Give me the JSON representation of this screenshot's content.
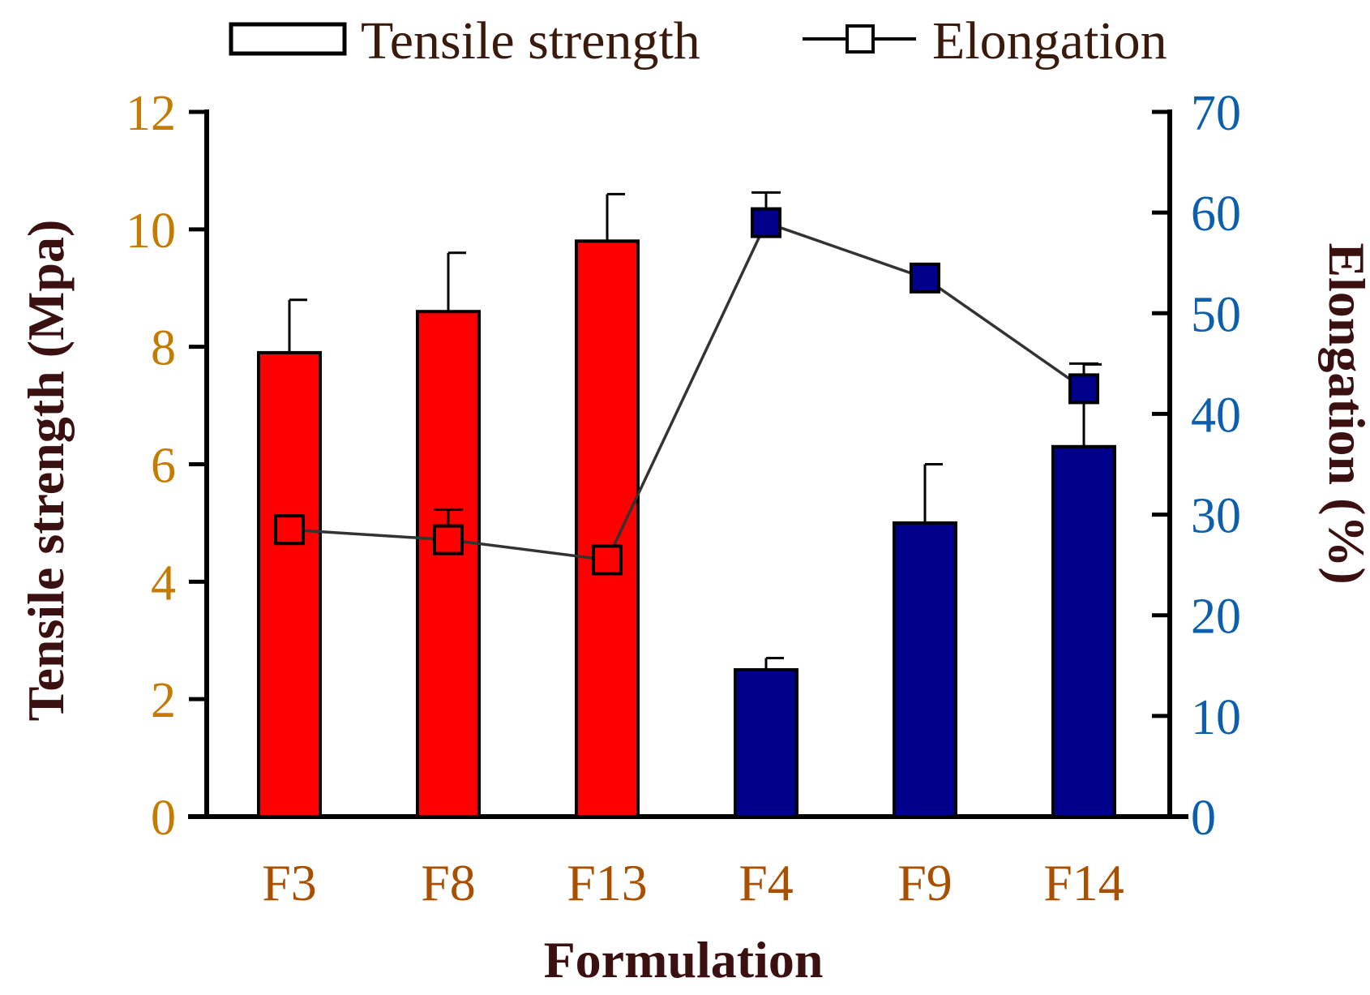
{
  "chart_data": {
    "type": "bar+line",
    "categories": [
      "F3",
      "F8",
      "F13",
      "F4",
      "F9",
      "F14"
    ],
    "xlabel": "Formulation",
    "legend": {
      "position": "top",
      "entries": [
        "Tensile strength",
        "Elongation"
      ]
    },
    "left_axis": {
      "label": "Tensile strength (Mpa)",
      "ylim": [
        0,
        12
      ],
      "ticks": [
        0,
        2,
        4,
        6,
        8,
        10,
        12
      ]
    },
    "right_axis": {
      "label": "Elongation  (%)",
      "ylim": [
        0,
        70
      ],
      "ticks": [
        0,
        10,
        20,
        30,
        40,
        50,
        60,
        70
      ]
    },
    "series": [
      {
        "name": "Tensile strength",
        "type": "bar",
        "axis": "left",
        "values": [
          7.9,
          8.6,
          9.8,
          2.5,
          5.0,
          6.3
        ],
        "errors": [
          0.9,
          1.0,
          0.8,
          0.2,
          1.0,
          1.4
        ],
        "colors": [
          "#ff0000",
          "#ff0000",
          "#ff0000",
          "#00008b",
          "#00008b",
          "#00008b"
        ]
      },
      {
        "name": "Elongation",
        "type": "line",
        "axis": "right",
        "values": [
          28.5,
          27.5,
          25.5,
          59.0,
          53.5,
          42.5
        ],
        "errors": [
          1.0,
          3.0,
          0.5,
          3.0,
          1.0,
          2.5
        ],
        "colors": [
          "#ff0000",
          "#ff0000",
          "#ff0000",
          "#00008b",
          "#00008b",
          "#00008b"
        ]
      }
    ]
  }
}
